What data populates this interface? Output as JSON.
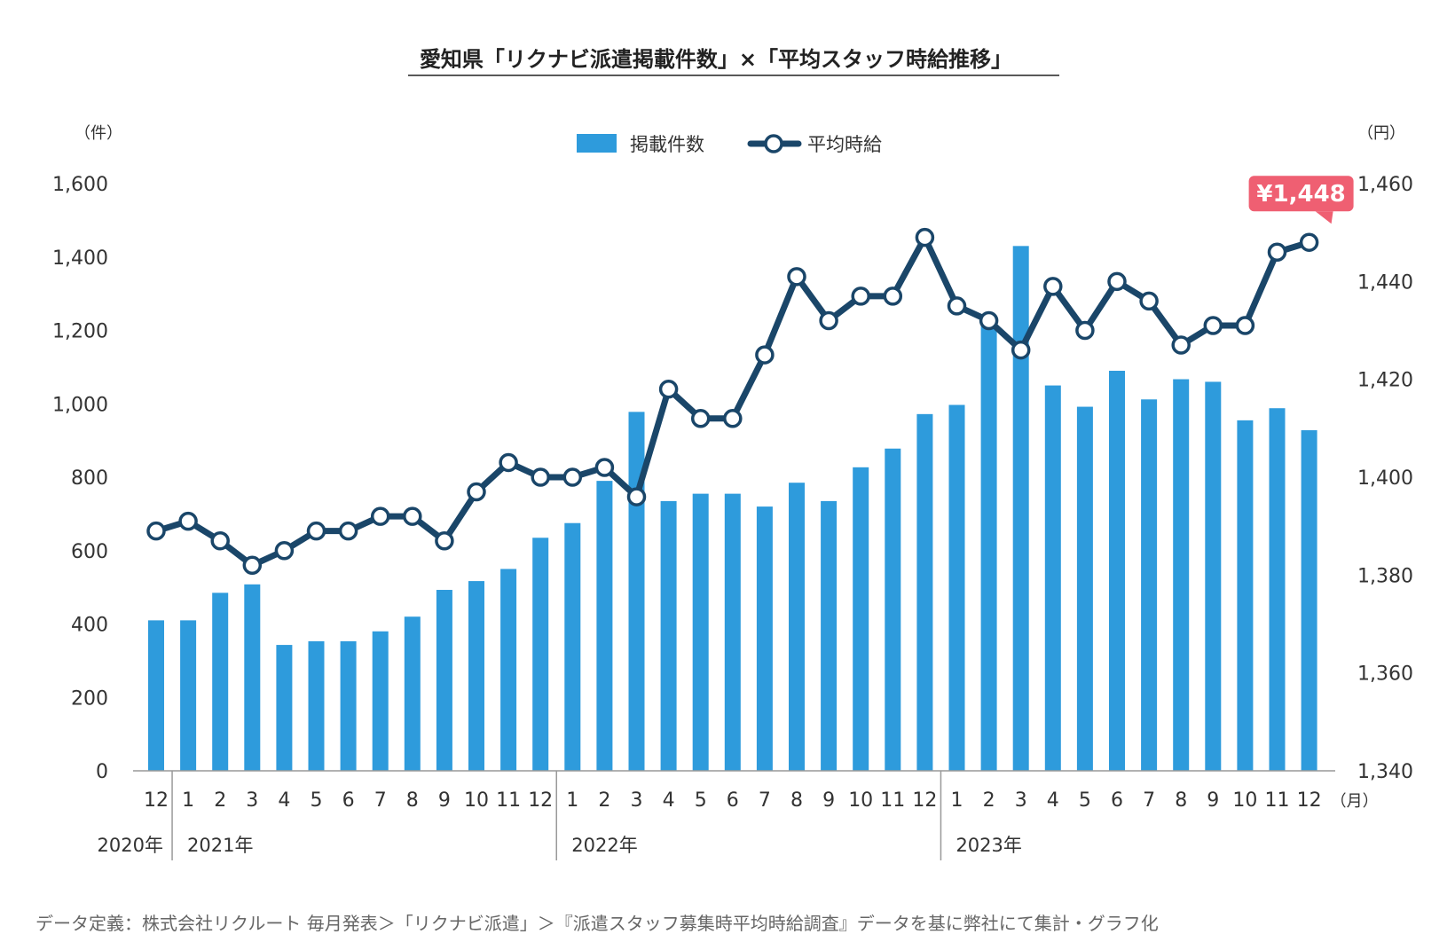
{
  "chart_data": {
    "type": "bar+line",
    "title": "愛知県「リクナビ派遣掲載件数」×「平均スタッフ時給推移」",
    "left_unit": "（件）",
    "right_unit": "（円）",
    "month_unit": "（月）",
    "y_left": {
      "min": 0,
      "max": 1600,
      "ticks": [
        "0",
        "200",
        "400",
        "600",
        "800",
        "1,000",
        "1,200",
        "1,400",
        "1,600"
      ]
    },
    "y_right": {
      "min": 1340,
      "max": 1460,
      "ticks": [
        "1,340",
        "1,360",
        "1,380",
        "1,400",
        "1,420",
        "1,440",
        "1,460"
      ]
    },
    "categories": [
      "12",
      "1",
      "2",
      "3",
      "4",
      "5",
      "6",
      "7",
      "8",
      "9",
      "10",
      "11",
      "12",
      "1",
      "2",
      "3",
      "4",
      "5",
      "6",
      "7",
      "8",
      "9",
      "10",
      "11",
      "12",
      "1",
      "2",
      "3",
      "4",
      "5",
      "6",
      "7",
      "8",
      "9",
      "10",
      "11",
      "12"
    ],
    "years": [
      {
        "label": "2020年",
        "start_index": 0
      },
      {
        "label": "2021年",
        "start_index": 1
      },
      {
        "label": "2022年",
        "start_index": 13
      },
      {
        "label": "2023年",
        "start_index": 25
      }
    ],
    "grid": false,
    "legend_position": "top-center",
    "series": [
      {
        "name": "掲載件数",
        "type": "bar",
        "axis": "left",
        "color": "#2e9bdc",
        "values": [
          410,
          410,
          485,
          508,
          343,
          353,
          353,
          380,
          420,
          493,
          517,
          550,
          635,
          675,
          790,
          978,
          735,
          755,
          755,
          720,
          785,
          735,
          827,
          878,
          972,
          997,
          1235,
          1430,
          1050,
          992,
          1090,
          1012,
          1067,
          1060,
          955,
          988,
          928
        ]
      },
      {
        "name": "平均時給",
        "type": "line",
        "axis": "right",
        "color": "#1a4669",
        "values": [
          1389,
          1391,
          1387,
          1382,
          1385,
          1389,
          1389,
          1392,
          1392,
          1387,
          1397,
          1403,
          1400,
          1400,
          1402,
          1396,
          1418,
          1412,
          1412,
          1425,
          1441,
          1432,
          1437,
          1437,
          1449,
          1435,
          1432,
          1426,
          1439,
          1430,
          1440,
          1436,
          1427,
          1431,
          1431,
          1446,
          1448
        ]
      }
    ],
    "callout": {
      "label": "¥1,448",
      "color": "#ef5f72",
      "index": 36
    }
  },
  "footer_note": "データ定義：株式会社リクルート 毎月発表＞「リクナビ派遣」＞『派遣スタッフ募集時平均時給調査』データを基に弊社にて集計・グラフ化"
}
